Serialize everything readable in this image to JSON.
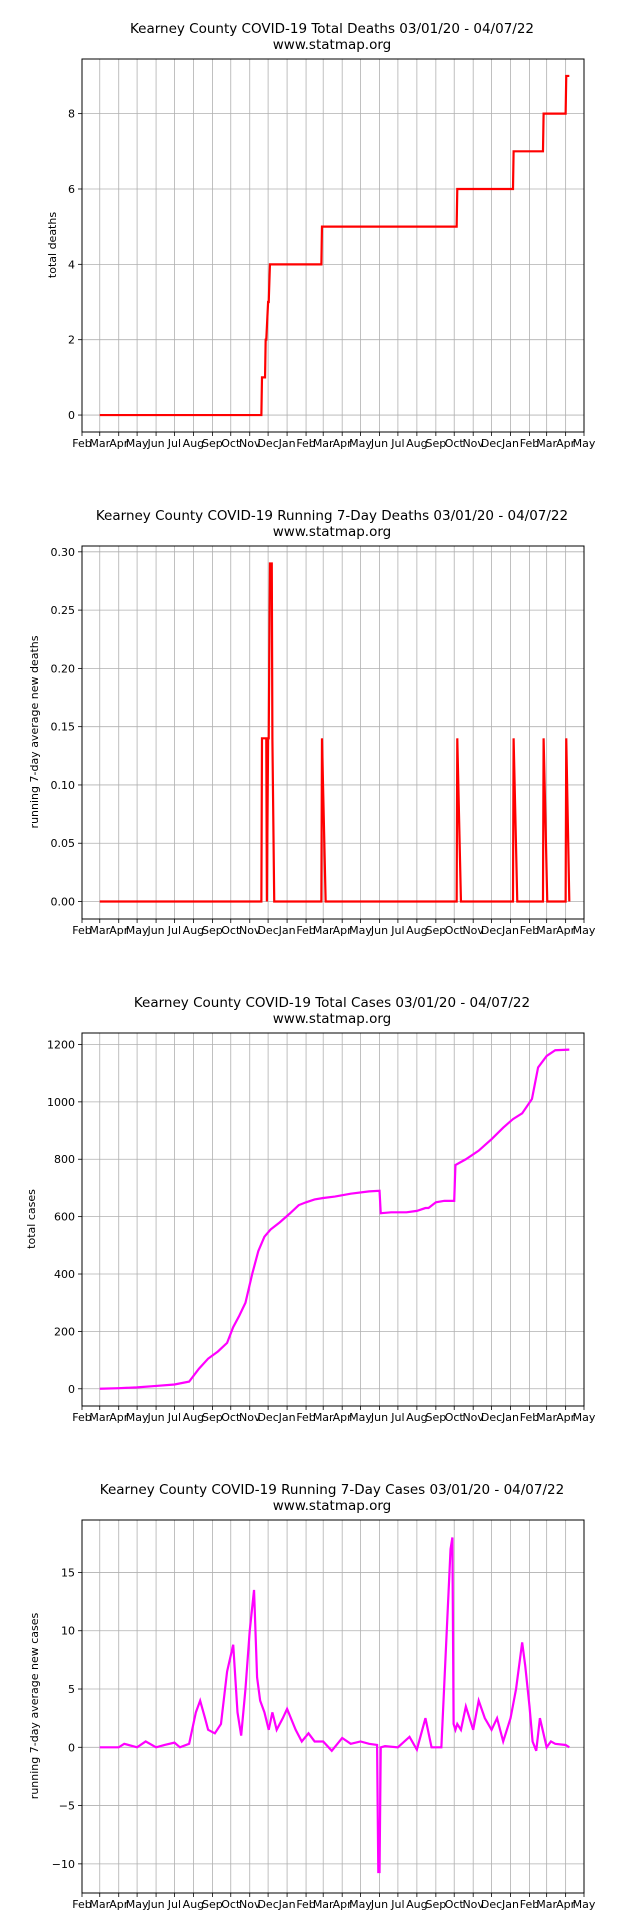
{
  "chart_data": [
    {
      "type": "line",
      "title": "Kearney County COVID-19 Total Deaths 03/01/20 - 04/07/22",
      "subtitle": "www.statmap.org",
      "xlabel": "",
      "ylabel": "total deaths",
      "color": "#ff0000",
      "step": true,
      "grid": true,
      "xlim": [
        "2020-02-01",
        "2022-05-01"
      ],
      "ylim": [
        -0.45,
        9.45
      ],
      "yticks": [
        0,
        2,
        4,
        6,
        8
      ],
      "ytick_labels": [
        "0",
        "2",
        "4",
        "6",
        "8"
      ],
      "x_tick_labels": [
        "Feb",
        "Mar",
        "Apr",
        "May",
        "Jun",
        "Jul",
        "Aug",
        "Sep",
        "Oct",
        "Nov",
        "Dec",
        "Jan",
        "Feb",
        "Mar",
        "Apr",
        "May",
        "Jun",
        "Jul",
        "Aug",
        "Sep",
        "Oct",
        "Nov",
        "Dec",
        "Jan",
        "Feb",
        "Mar",
        "Apr",
        "May"
      ],
      "series": [
        {
          "x": [
            "2020-03-01",
            "2020-11-20",
            "2020-11-21",
            "2020-11-26",
            "2020-11-27",
            "2020-11-28",
            "2020-12-01",
            "2020-12-02",
            "2020-12-04",
            "2020-12-05",
            "2021-02-26",
            "2021-02-27",
            "2021-10-05",
            "2021-10-06",
            "2022-01-05",
            "2022-01-06",
            "2022-02-23",
            "2022-02-24",
            "2022-04-01",
            "2022-04-02",
            "2022-04-07"
          ],
          "y": [
            0,
            0,
            1,
            1,
            2,
            2,
            3,
            3,
            4,
            4,
            4,
            5,
            5,
            6,
            6,
            7,
            7,
            8,
            8,
            9,
            9
          ]
        }
      ]
    },
    {
      "type": "line",
      "title": "Kearney County COVID-19 Running 7-Day Deaths 03/01/20 - 04/07/22",
      "subtitle": "www.statmap.org",
      "xlabel": "",
      "ylabel": "running 7-day average new deaths",
      "color": "#ff0000",
      "step": true,
      "grid": true,
      "xlim": [
        "2020-02-01",
        "2022-05-01"
      ],
      "ylim": [
        -0.015,
        0.305
      ],
      "yticks": [
        0,
        0.05,
        0.1,
        0.15,
        0.2,
        0.25,
        0.3
      ],
      "ytick_labels": [
        "0.00",
        "0.05",
        "0.10",
        "0.15",
        "0.20",
        "0.25",
        "0.30"
      ],
      "x_tick_labels": [
        "Feb",
        "Mar",
        "Apr",
        "May",
        "Jun",
        "Jul",
        "Aug",
        "Sep",
        "Oct",
        "Nov",
        "Dec",
        "Jan",
        "Feb",
        "Mar",
        "Apr",
        "May",
        "Jun",
        "Jul",
        "Aug",
        "Sep",
        "Oct",
        "Nov",
        "Dec",
        "Jan",
        "Feb",
        "Mar",
        "Apr",
        "May"
      ],
      "series": [
        {
          "x": [
            "2020-03-01",
            "2020-11-20",
            "2020-11-21",
            "2020-11-27",
            "2020-11-28",
            "2020-11-29",
            "2020-12-01",
            "2020-12-02",
            "2020-12-04",
            "2020-12-05",
            "2020-12-07",
            "2020-12-08",
            "2020-12-11",
            "2021-02-26",
            "2021-02-27",
            "2021-03-05",
            "2021-10-05",
            "2021-10-06",
            "2021-10-12",
            "2022-01-05",
            "2022-01-06",
            "2022-01-12",
            "2022-02-23",
            "2022-02-24",
            "2022-03-02",
            "2022-04-01",
            "2022-04-02",
            "2022-04-07"
          ],
          "y": [
            0,
            0,
            0.14,
            0.14,
            0.14,
            0,
            0.14,
            0.14,
            0.29,
            0.29,
            0.29,
            0.14,
            0,
            0,
            0.14,
            0,
            0,
            0.14,
            0,
            0,
            0.14,
            0,
            0,
            0.14,
            0,
            0,
            0.14,
            0
          ]
        }
      ]
    },
    {
      "type": "line",
      "title": "Kearney County COVID-19 Total Cases 03/01/20 - 04/07/22",
      "subtitle": "www.statmap.org",
      "xlabel": "",
      "ylabel": "total cases",
      "color": "#ff00ff",
      "step": false,
      "grid": true,
      "xlim": [
        "2020-02-01",
        "2022-05-01"
      ],
      "ylim": [
        -60,
        1240
      ],
      "yticks": [
        0,
        200,
        400,
        600,
        800,
        1000,
        1200
      ],
      "ytick_labels": [
        "0",
        "200",
        "400",
        "600",
        "800",
        "1000",
        "1200"
      ],
      "x_tick_labels": [
        "Feb",
        "Mar",
        "Apr",
        "May",
        "Jun",
        "Jul",
        "Aug",
        "Sep",
        "Oct",
        "Nov",
        "Dec",
        "Jan",
        "Feb",
        "Mar",
        "Apr",
        "May",
        "Jun",
        "Jul",
        "Aug",
        "Sep",
        "Oct",
        "Nov",
        "Dec",
        "Jan",
        "Feb",
        "Mar",
        "Apr",
        "May"
      ],
      "series": [
        {
          "x": [
            "2020-03-01",
            "2020-04-01",
            "2020-05-01",
            "2020-06-01",
            "2020-07-01",
            "2020-07-25",
            "2020-08-10",
            "2020-08-25",
            "2020-09-10",
            "2020-09-25",
            "2020-10-05",
            "2020-10-15",
            "2020-10-25",
            "2020-11-05",
            "2020-11-15",
            "2020-11-25",
            "2020-12-05",
            "2020-12-20",
            "2021-01-05",
            "2021-01-20",
            "2021-02-01",
            "2021-02-15",
            "2021-03-01",
            "2021-03-20",
            "2021-04-15",
            "2021-05-15",
            "2021-06-01",
            "2021-06-03",
            "2021-06-20",
            "2021-07-15",
            "2021-08-01",
            "2021-08-15",
            "2021-08-20",
            "2021-09-01",
            "2021-09-15",
            "2021-10-01",
            "2021-10-03",
            "2021-10-20",
            "2021-11-10",
            "2021-12-01",
            "2021-12-20",
            "2022-01-05",
            "2022-01-20",
            "2022-02-05",
            "2022-02-15",
            "2022-03-01",
            "2022-03-15",
            "2022-04-07"
          ],
          "y": [
            0,
            2,
            5,
            10,
            15,
            25,
            70,
            105,
            130,
            160,
            215,
            255,
            300,
            400,
            480,
            530,
            555,
            580,
            610,
            640,
            650,
            660,
            665,
            670,
            680,
            688,
            690,
            612,
            615,
            615,
            620,
            630,
            630,
            650,
            655,
            655,
            780,
            800,
            830,
            870,
            910,
            940,
            960,
            1010,
            1120,
            1160,
            1180,
            1182
          ]
        }
      ]
    },
    {
      "type": "line",
      "title": "Kearney County COVID-19 Running 7-Day Cases 03/01/20 - 04/07/22",
      "subtitle": "www.statmap.org",
      "xlabel": "",
      "ylabel": "running 7-day average new cases",
      "color": "#ff00ff",
      "step": false,
      "grid": true,
      "xlim": [
        "2020-02-01",
        "2022-05-01"
      ],
      "ylim": [
        -12.5,
        19.5
      ],
      "yticks": [
        -10,
        -5,
        0,
        5,
        10,
        15
      ],
      "ytick_labels": [
        "−10",
        "−5",
        "0",
        "5",
        "10",
        "15"
      ],
      "x_tick_labels": [
        "Feb",
        "Mar",
        "Apr",
        "May",
        "Jun",
        "Jul",
        "Aug",
        "Sep",
        "Oct",
        "Nov",
        "Dec",
        "Jan",
        "Feb",
        "Mar",
        "Apr",
        "May",
        "Jun",
        "Jul",
        "Aug",
        "Sep",
        "Oct",
        "Nov",
        "Dec",
        "Jan",
        "Feb",
        "Mar",
        "Apr",
        "May"
      ],
      "series": [
        {
          "x": [
            "2020-03-01",
            "2020-04-01",
            "2020-04-10",
            "2020-05-01",
            "2020-05-15",
            "2020-06-01",
            "2020-06-15",
            "2020-07-01",
            "2020-07-10",
            "2020-07-25",
            "2020-08-05",
            "2020-08-12",
            "2020-08-20",
            "2020-08-25",
            "2020-09-05",
            "2020-09-15",
            "2020-09-25",
            "2020-10-05",
            "2020-10-12",
            "2020-10-18",
            "2020-10-25",
            "2020-11-01",
            "2020-11-08",
            "2020-11-13",
            "2020-11-18",
            "2020-11-25",
            "2020-12-02",
            "2020-12-08",
            "2020-12-15",
            "2020-12-25",
            "2021-01-01",
            "2021-01-15",
            "2021-01-25",
            "2021-02-05",
            "2021-02-15",
            "2021-03-01",
            "2021-03-15",
            "2021-04-01",
            "2021-04-15",
            "2021-05-01",
            "2021-05-15",
            "2021-05-28",
            "2021-05-30",
            "2021-06-01",
            "2021-06-03",
            "2021-06-10",
            "2021-07-01",
            "2021-07-20",
            "2021-08-01",
            "2021-08-15",
            "2021-08-25",
            "2021-09-10",
            "2021-09-25",
            "2021-09-28",
            "2021-09-30",
            "2021-10-03",
            "2021-10-06",
            "2021-10-12",
            "2021-10-20",
            "2021-11-01",
            "2021-11-10",
            "2021-11-20",
            "2021-12-01",
            "2021-12-10",
            "2021-12-20",
            "2022-01-01",
            "2022-01-10",
            "2022-01-20",
            "2022-01-25",
            "2022-02-01",
            "2022-02-06",
            "2022-02-12",
            "2022-02-18",
            "2022-03-01",
            "2022-03-08",
            "2022-03-15",
            "2022-04-01",
            "2022-04-07"
          ],
          "y": [
            0,
            0,
            0.3,
            0,
            0.5,
            0,
            0.2,
            0.4,
            0,
            0.3,
            3,
            4,
            2.5,
            1.5,
            1.2,
            2,
            6.5,
            8.8,
            3,
            1,
            5,
            10,
            13.5,
            6,
            4,
            3,
            1.5,
            3,
            1.5,
            2.5,
            3.3,
            1.5,
            0.5,
            1.2,
            0.5,
            0.5,
            -0.3,
            0.8,
            0.3,
            0.5,
            0.3,
            0.2,
            -10.7,
            -10.7,
            0,
            0.1,
            0,
            0.9,
            -0.2,
            2.5,
            0,
            0,
            17,
            18,
            2,
            1.5,
            2,
            1.5,
            3.5,
            1.5,
            4,
            2.5,
            1.5,
            2.5,
            0.5,
            2.5,
            5,
            9,
            7,
            3.5,
            0.5,
            -0.3,
            2.5,
            0,
            0.5,
            0.3,
            0.2,
            0
          ]
        }
      ]
    }
  ]
}
